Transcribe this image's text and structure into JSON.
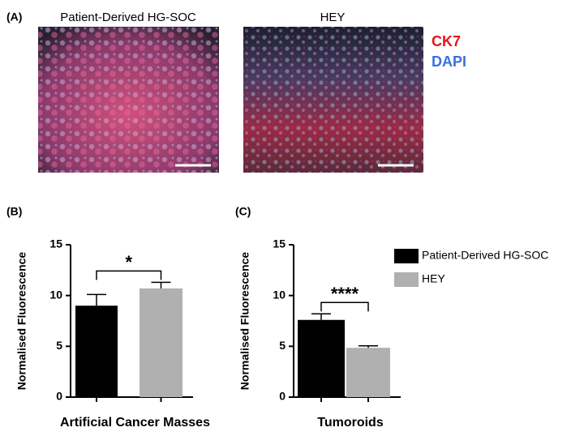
{
  "figure": {
    "panel_labels": [
      "(A)",
      "(B)",
      "(C)"
    ],
    "image_titles": [
      "Patient-Derived HG-SOC",
      "HEY"
    ],
    "stain_legend": [
      {
        "name": "CK7",
        "color": "#e8141b"
      },
      {
        "name": "DAPI",
        "color": "#3b6fe0"
      }
    ]
  },
  "chart_data": [
    {
      "type": "bar",
      "y_label": "Normalised Fluorescence",
      "categories": [
        "Artificial Cancer Masses"
      ],
      "series": [
        {
          "name": "Patient-Derived HG-SOC",
          "color": "#000000",
          "values": [
            9.0
          ],
          "errors": [
            1.1
          ]
        },
        {
          "name": "HEY",
          "color": "#b0b0b0",
          "values": [
            10.7
          ],
          "errors": [
            0.6
          ]
        }
      ],
      "annotations": [
        {
          "text": "*"
        }
      ],
      "ylim": [
        0,
        15
      ],
      "yticks": [
        0,
        5,
        10,
        15
      ],
      "legend": "right"
    },
    {
      "type": "bar",
      "y_label": "Normalised Fluorescence",
      "categories": [
        "Tumoroids"
      ],
      "series": [
        {
          "color": "#000000",
          "values": [
            7.6
          ],
          "errors": [
            0.6
          ]
        },
        {
          "color": "#b0b0b0",
          "values": [
            4.85
          ],
          "errors": [
            0.2
          ]
        }
      ],
      "annotations": [
        {
          "text": "****"
        }
      ],
      "ylim": [
        0,
        15
      ],
      "yticks": [
        0,
        5,
        10,
        15
      ]
    }
  ]
}
